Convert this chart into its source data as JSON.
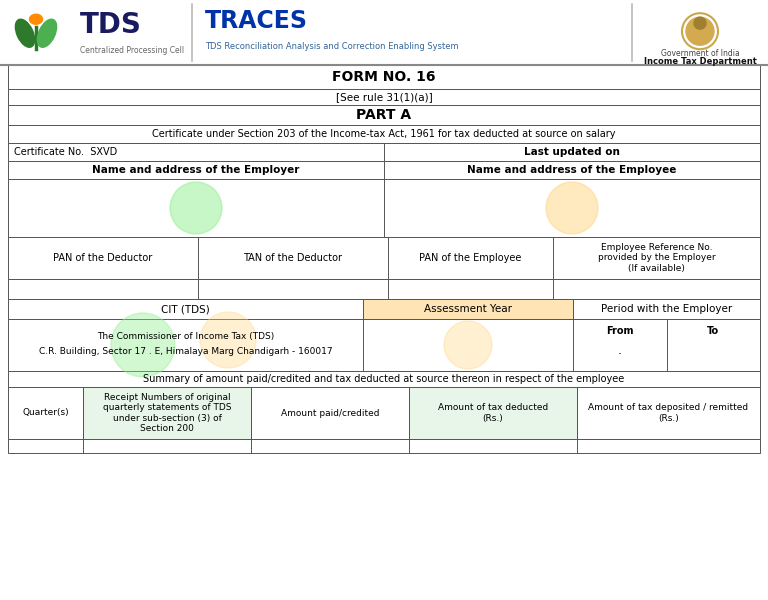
{
  "title": "FORM NO. 16",
  "subtitle": "[See rule 31(1)(a)]",
  "part_a": "PART A",
  "cert_text": "Certificate under Section 203 of the Income-tax Act, 1961 for tax deducted at source on salary",
  "cert_no": "Certificate No.  SXVD",
  "last_updated": "Last updated on",
  "employer_label": "Name and address of the Employer",
  "employee_label": "Name and address of the Employee",
  "pan_deductor": "PAN of the Deductor",
  "tan_deductor": "TAN of the Deductor",
  "pan_employee": "PAN of the Employee",
  "emp_ref": "Employee Reference No.\nprovided by the Employer\n(If available)",
  "cit_label": "CIT (TDS)",
  "assessment_year": "Assessment Year",
  "period_employer": "Period with the Employer",
  "from_label": "From",
  "to_label": "To",
  "cit_address1": "The Commissioner of Income Tax (TDS)",
  "cit_address2": "C.R. Building, Sector 17 . E, Himalaya Marg Chandigarh - 160017",
  "summary_text": "Summary of amount paid/credited and tax deducted at source thereon in respect of the employee",
  "quarter_label": "Quarter(s)",
  "receipt_label": "Receipt Numbers of original\nquarterly statements of TDS\nunder sub-section (3) of\nSection 200",
  "amount_paid": "Amount paid/credited",
  "tax_deducted": "Amount of tax deducted\n(Rs.)",
  "tax_deposited": "Amount of tax deposited / remitted\n(Rs.)",
  "tds_text": "TDS",
  "centralized": "Centralized Processing Cell",
  "traces_text": "TRACES",
  "traces_sub": "TDS Reconciliation Analysis and Correction Enabling System",
  "gov_india": "Government of India",
  "income_tax_dept": "Income Tax Department",
  "border_color": "#555555",
  "watermark_green": "#90EE90",
  "watermark_orange": "#FFD580",
  "assessment_bg": "#FFE4B5",
  "tds_dark_green": "#2d7a2d",
  "tds_light_green": "#4CAF50",
  "tds_orange": "#FF8C00",
  "traces_blue": "#0033AA",
  "traces_sub_color": "#336699"
}
